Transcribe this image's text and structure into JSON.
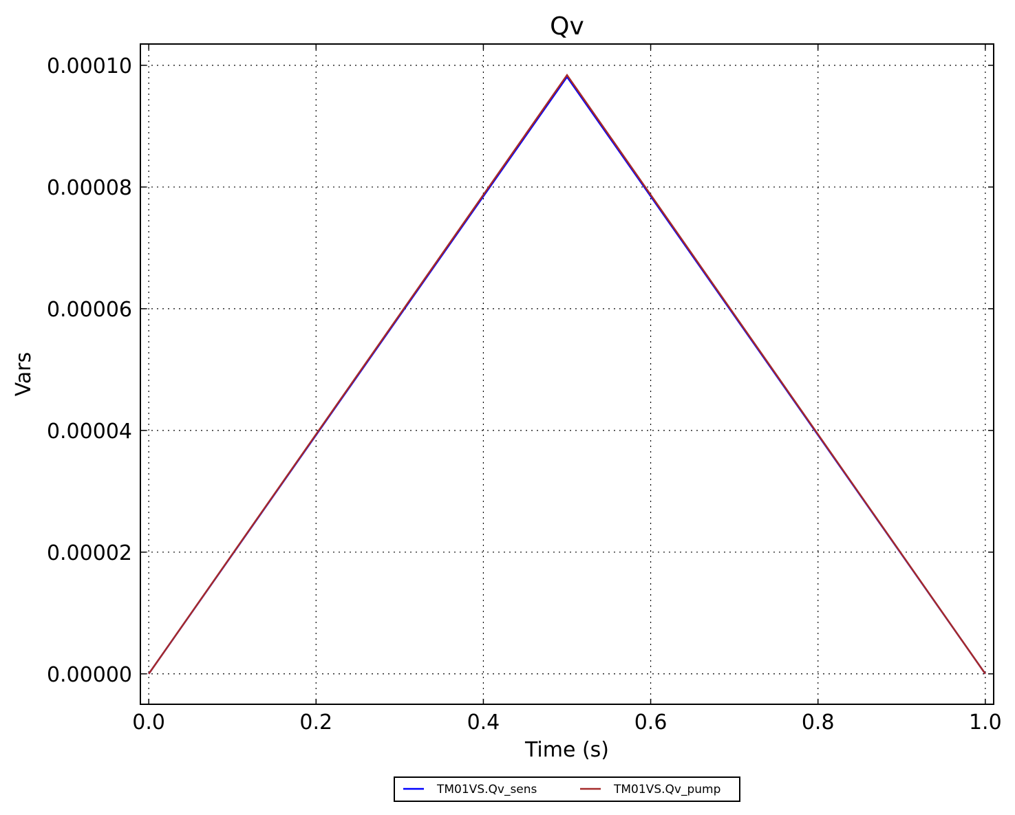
{
  "chart_data": {
    "type": "line",
    "title": "Qv",
    "xlabel": "Time (s)",
    "ylabel": "Vars",
    "xlim": [
      -0.01,
      1.01
    ],
    "ylim": [
      -5e-06,
      0.0001035
    ],
    "xticks": [
      0.0,
      0.2,
      0.4,
      0.6,
      0.8,
      1.0
    ],
    "xtick_labels": [
      "0.0",
      "0.2",
      "0.4",
      "0.6",
      "0.8",
      "1.0"
    ],
    "yticks": [
      0,
      2e-05,
      4e-05,
      6e-05,
      8e-05,
      0.0001
    ],
    "ytick_labels": [
      "0.00000",
      "0.00002",
      "0.00004",
      "0.00006",
      "0.00008",
      "0.00010"
    ],
    "grid": true,
    "legend_position": "bottom-center, below axes",
    "series": [
      {
        "name": "TM01VS.Qv_sens",
        "color": "#0000ff",
        "x": [
          0.0,
          0.5,
          1.0
        ],
        "y": [
          0,
          9.81e-05,
          0
        ]
      },
      {
        "name": "TM01VS.Qv_pump",
        "color": "#a52a2a",
        "x": [
          0.0,
          0.5,
          1.0
        ],
        "y": [
          0,
          9.84e-05,
          0
        ]
      }
    ]
  }
}
